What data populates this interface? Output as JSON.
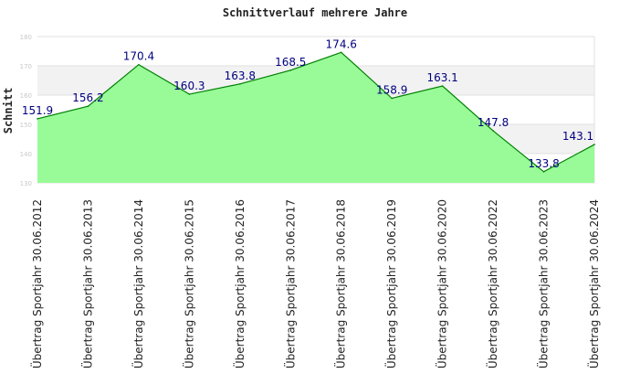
{
  "chart_data": {
    "type": "area",
    "title": "Schnittverlauf mehrere Jahre",
    "xlabel": "",
    "ylabel": "Schnitt",
    "ylim": [
      130,
      180
    ],
    "yticks": [
      "130",
      "140",
      "150",
      "160",
      "170",
      "180"
    ],
    "grid": "horizontal bands",
    "categories": [
      "Übertrag Sportjahr 30.06.2012",
      "Übertrag Sportjahr 30.06.2013",
      "Übertrag Sportjahr 30.06.2014",
      "Übertrag Sportjahr 30.06.2015",
      "Übertrag Sportjahr 30.06.2016",
      "Übertrag Sportjahr 30.06.2017",
      "Übertrag Sportjahr 30.06.2018",
      "Übertrag Sportjahr 30.06.2019",
      "Übertrag Sportjahr 30.06.2020",
      "Übertrag Sportjahr 30.06.2022",
      "Übertrag Sportjahr 30.06.2023",
      "Übertrag Sportjahr 30.06.2024"
    ],
    "values": [
      151.9,
      156.2,
      170.4,
      160.3,
      163.8,
      168.5,
      174.6,
      158.9,
      163.1,
      147.8,
      133.8,
      143.1
    ],
    "data_labels": [
      "151.9",
      "156.2",
      "170.4",
      "160.3",
      "163.8",
      "168.5",
      "174.6",
      "158.9",
      "163.1",
      "147.8",
      "133.8",
      "143.1"
    ],
    "colors": {
      "fill": "#98fb98",
      "line": "#008000",
      "label": "#000080",
      "band": "#f2f2f2",
      "grid": "#e0e0e0"
    }
  }
}
